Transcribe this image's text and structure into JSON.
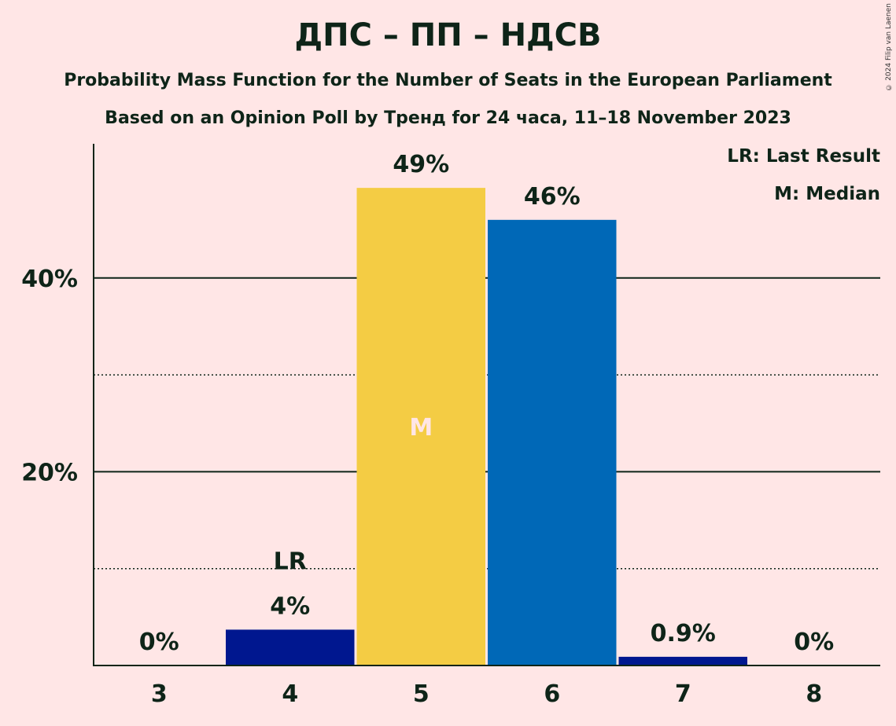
{
  "header": {
    "title": "ДПС – ПП – НДСВ",
    "subtitle1": "Probability Mass Function for the Number of Seats in the European Parliament",
    "subtitle2": "Based on an Opinion Poll by Тренд for 24 часа, 11–18 November 2023"
  },
  "legend": {
    "lr": "LR: Last Result",
    "m": "M: Median"
  },
  "copyright": "© 2024 Filip van Laenen",
  "colors": {
    "background": "#FFE6E6",
    "text": "#0E2418",
    "dark_blue": "#00178F",
    "yellow": "#F4CC44",
    "blue": "#0068B7"
  },
  "chart_data": {
    "type": "bar",
    "categories": [
      "3",
      "4",
      "5",
      "6",
      "7",
      "8"
    ],
    "values": [
      0,
      3.7,
      49.3,
      46.0,
      0.9,
      0
    ],
    "value_labels": [
      "0%",
      "4%",
      "49%",
      "46%",
      "0.9%",
      "0%"
    ],
    "bar_colors": [
      "#00178F",
      "#00178F",
      "#F4CC44",
      "#0068B7",
      "#00178F",
      "#00178F"
    ],
    "last_result_category": "4",
    "last_result_label": "LR",
    "median_category": "5",
    "median_label": "M",
    "ylim": [
      0,
      54
    ],
    "yticks": [
      {
        "value": 20,
        "label": "20%",
        "style": "solid"
      },
      {
        "value": 40,
        "label": "40%",
        "style": "solid"
      }
    ],
    "minor_gridlines": [
      10,
      30
    ],
    "xlabel": "",
    "ylabel": ""
  }
}
